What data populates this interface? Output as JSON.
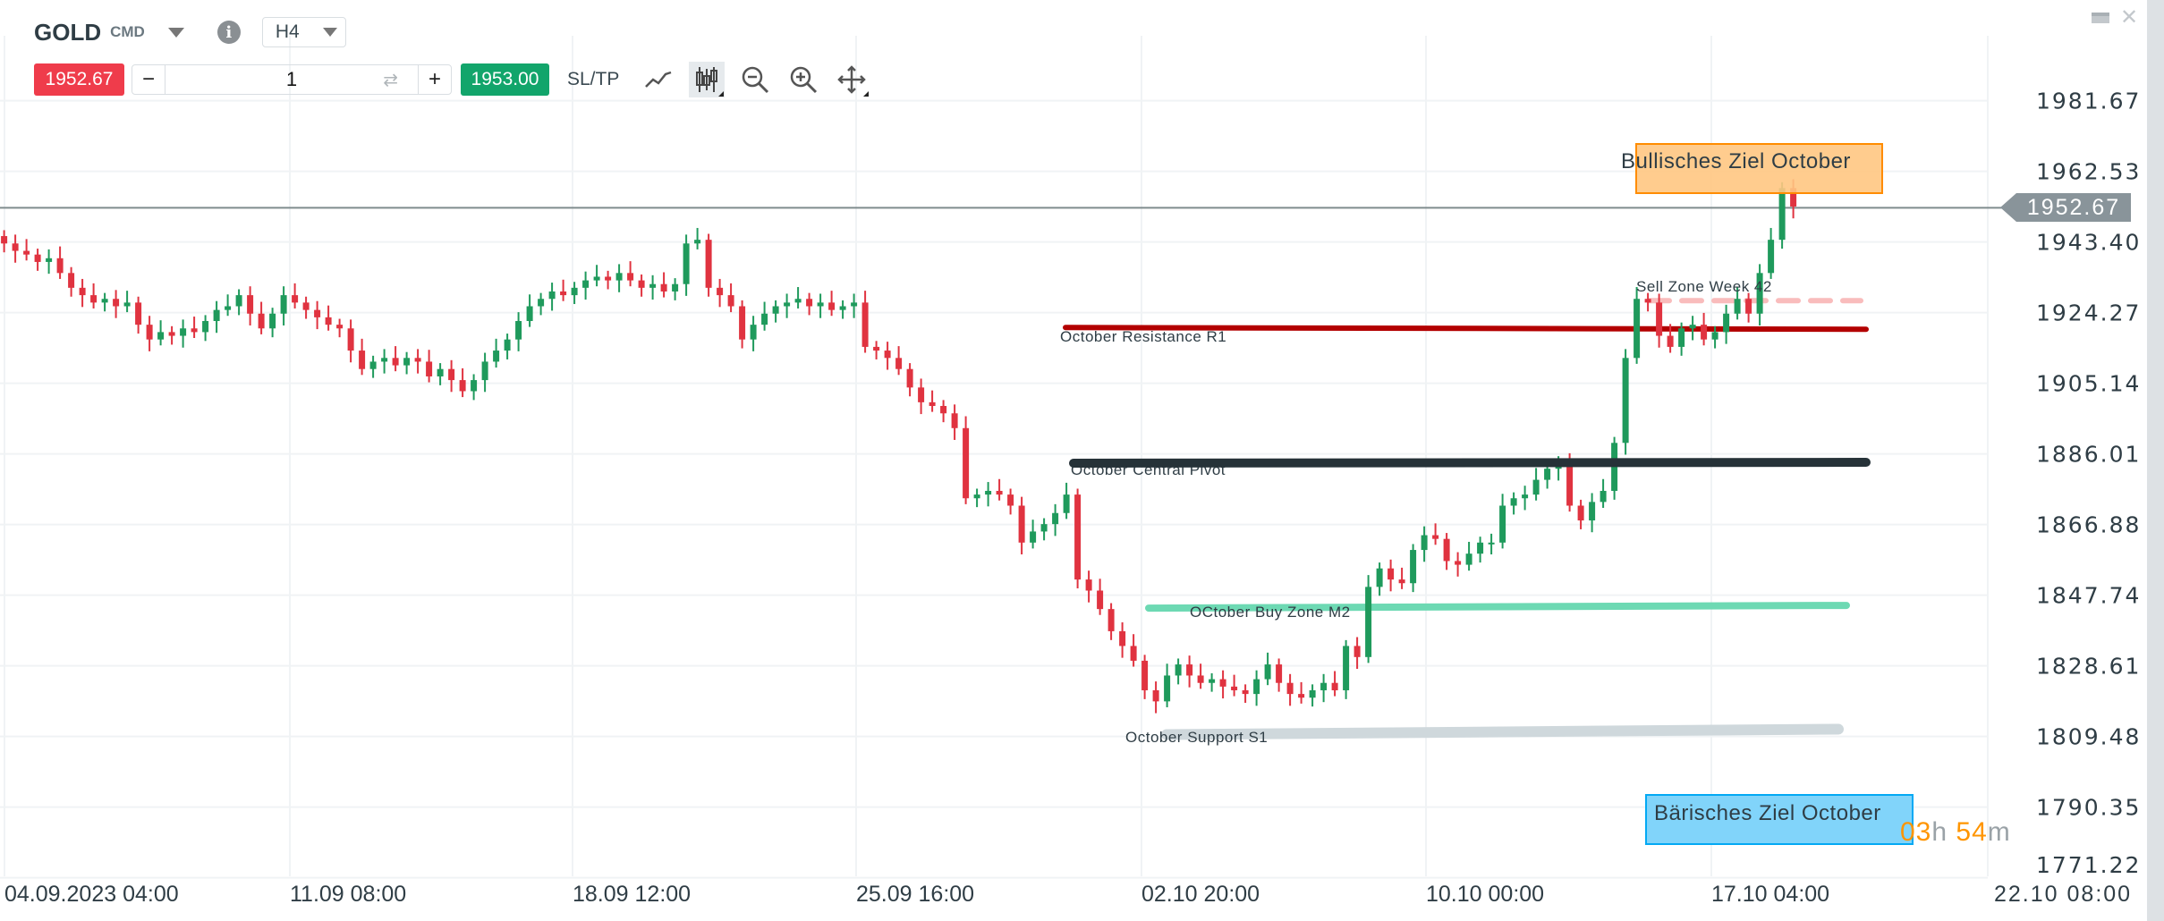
{
  "header": {
    "symbol": "GOLD",
    "symbol_type": "CMD",
    "info_icon": "i",
    "timeframe": "H4"
  },
  "trade_bar": {
    "sell_price": "1952.67",
    "minus_label": "−",
    "quantity": "1",
    "plus_label": "+",
    "buy_price": "1953.00",
    "sltp_label": "SL/TP",
    "tools": [
      "line-chart-icon",
      "candlestick-icon",
      "zoom-out-icon",
      "zoom-in-icon",
      "move-icon"
    ]
  },
  "window_controls": [
    "minimize-icon",
    "close-icon"
  ],
  "current_price_tag": "1952.67",
  "countdown": {
    "hours": "03",
    "h": "h",
    "minutes": "54",
    "m": "m"
  },
  "annotations": {
    "bullish_target": "Bullisches Ziel October",
    "bearish_target": "Bärisches Ziel October",
    "sell_zone": "Sell Zone Week 42",
    "resistance": "October Resistance R1",
    "pivot": "October Central Pivot",
    "buy_zone": "OCtober Buy Zone M2",
    "support": "October Support S1"
  },
  "colors": {
    "up": "#1f9a5c",
    "down": "#e03340",
    "resistance": "#b30000",
    "pivot": "#263238",
    "buy_zone": "#6dd9b3",
    "support": "#cfd8dc",
    "sell_zone": "#f9bcbc",
    "bullish_fill": "#ffc782",
    "bullish_border": "#ff8c00",
    "bearish_fill": "#81d4fa",
    "bearish_border": "#03a9f4",
    "price_line": "#7f8c8d"
  },
  "chart_data": {
    "type": "candlestick",
    "timeframe": "H4",
    "ylim": [
      1771.22,
      1981.67
    ],
    "y_ticks": [
      "1981.67",
      "1962.53",
      "1943.40",
      "1924.27",
      "1905.14",
      "1886.01",
      "1866.88",
      "1847.74",
      "1828.61",
      "1809.48",
      "1790.35",
      "1771.22"
    ],
    "x_ticks": [
      "04.09.2023 04:00",
      "11.09 08:00",
      "18.09 12:00",
      "25.09 16:00",
      "02.10 20:00",
      "10.10 00:00",
      "17.10 04:00",
      "22.10 08:00"
    ],
    "first_open": 1945,
    "closes": [
      1943,
      1941,
      1940,
      1938,
      1939,
      1935,
      1931,
      1929,
      1927,
      1928,
      1926,
      1927,
      1921,
      1917,
      1919,
      1918,
      1920,
      1919,
      1922,
      1925,
      1926,
      1929,
      1924,
      1920,
      1924,
      1929,
      1927,
      1925,
      1923,
      1921,
      1920,
      1914,
      1909,
      1911,
      1912,
      1910,
      1912,
      1911,
      1907,
      1909,
      1906,
      1903,
      1906,
      1911,
      1914,
      1917,
      1922,
      1926,
      1928,
      1930,
      1929,
      1931,
      1933,
      1934,
      1933,
      1935,
      1933,
      1931,
      1932,
      1930,
      1932,
      1943,
      1944,
      1931,
      1929,
      1926,
      1917,
      1921,
      1924,
      1926,
      1927,
      1928,
      1926,
      1927,
      1925,
      1926,
      1927,
      1915,
      1914,
      1912,
      1909,
      1904,
      1900,
      1899,
      1897,
      1893,
      1874,
      1875,
      1876,
      1875,
      1872,
      1862,
      1865,
      1867,
      1870,
      1875,
      1852,
      1849,
      1844,
      1838,
      1834,
      1830,
      1822,
      1819,
      1826,
      1829,
      1826,
      1824,
      1825,
      1823,
      1822,
      1821,
      1825,
      1829,
      1824,
      1821,
      1820,
      1822,
      1824,
      1822,
      1834,
      1831,
      1850,
      1855,
      1852,
      1851,
      1860,
      1864,
      1863,
      1857,
      1856,
      1859,
      1862,
      1862,
      1872,
      1874,
      1875,
      1879,
      1882,
      1883,
      1872,
      1868,
      1873,
      1876,
      1889,
      1912,
      1928,
      1927,
      1918,
      1915,
      1920,
      1921,
      1917,
      1919,
      1924,
      1928,
      1924,
      1935,
      1944,
      1958,
      1953
    ],
    "current_price": 1952.67,
    "levels": {
      "resistance_r1": 1920.0,
      "central_pivot": 1883.5,
      "buy_zone_m2": 1844.5,
      "support_s1": 1810.5,
      "sell_zone_week_42": 1927.5
    },
    "zones": {
      "bullish_target": [
        1953.5,
        1967.5
      ],
      "bearish_target": [
        1781,
        1795
      ]
    }
  }
}
